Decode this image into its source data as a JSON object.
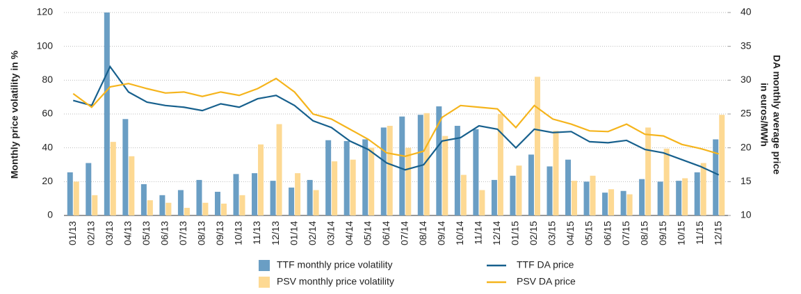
{
  "chart_data": {
    "type": "combo",
    "categories": [
      "01/13",
      "02/13",
      "03/13",
      "04/13",
      "05/13",
      "06/13",
      "07/13",
      "08/13",
      "09/13",
      "10/13",
      "11/13",
      "12/13",
      "01/14",
      "02/14",
      "03/14",
      "04/14",
      "05/14",
      "06/14",
      "07/14",
      "08/14",
      "09/14",
      "10/14",
      "11/14",
      "12/14",
      "01/15",
      "02/15",
      "03/15",
      "04/15",
      "05/15",
      "06/15",
      "07/15",
      "08/15",
      "09/15",
      "10/15",
      "11/15",
      "12/15"
    ],
    "series": [
      {
        "name": "TTF monthly price volatility",
        "type": "bar",
        "color": "#6a9ec4",
        "values": [
          25.5,
          31,
          120,
          57,
          18.5,
          12,
          15,
          21,
          14,
          24.5,
          25,
          20.5,
          16.5,
          21,
          44.5,
          44,
          45,
          52,
          58.5,
          59.5,
          64.5,
          53,
          51,
          21,
          23.5,
          36,
          29,
          33,
          20,
          13.5,
          14.5,
          21.5,
          20,
          20.5,
          25.5,
          45
        ]
      },
      {
        "name": "PSV monthly price volatility",
        "type": "bar",
        "color": "#fdd993",
        "values": [
          20,
          12,
          43.5,
          35,
          9,
          7.5,
          4.5,
          7.5,
          7,
          12,
          42,
          54,
          25,
          15,
          32,
          33,
          40,
          53,
          40,
          60.5,
          47,
          24,
          15,
          60,
          29.5,
          82,
          50,
          20.5,
          23.5,
          15.5,
          12.5,
          52,
          39.5,
          22,
          31,
          59.5
        ]
      },
      {
        "name": "TTF DA price",
        "type": "line",
        "axis": "y2",
        "color": "#17608d",
        "values": [
          27,
          26.25,
          32,
          28.25,
          26.75,
          26.25,
          26,
          25.5,
          26.5,
          26,
          27.25,
          27.75,
          26.25,
          24,
          23,
          21,
          19.75,
          17.75,
          16.75,
          17.5,
          21,
          21.5,
          23.25,
          22.75,
          20,
          22.75,
          22.25,
          22.4,
          20.9,
          20.75,
          21.1,
          19.75,
          19.25,
          18.25,
          17.25,
          16
        ]
      },
      {
        "name": "PSV DA price",
        "type": "line",
        "axis": "y2",
        "color": "#f5b41c",
        "values": [
          28,
          26,
          29,
          29.5,
          28.75,
          28.1,
          28.25,
          27.6,
          28.25,
          27.75,
          28.75,
          30.25,
          28.25,
          25,
          24.25,
          22.75,
          21.25,
          19.25,
          18.75,
          19.5,
          24.5,
          26.25,
          26,
          25.75,
          23,
          26.25,
          24.25,
          23.5,
          22.5,
          22.4,
          23.5,
          22,
          21.75,
          20.5,
          19.9,
          19.1
        ]
      }
    ],
    "ylabel": "Monthly price volatility in %",
    "y2label": [
      "DA monthly average price",
      "in euros/MWh"
    ],
    "ylim": [
      0,
      120
    ],
    "yticks": [
      0,
      20,
      40,
      60,
      80,
      100,
      120
    ],
    "y2lim": [
      10,
      40
    ],
    "y2ticks": [
      10,
      15,
      20,
      25,
      30,
      35,
      40
    ],
    "grid": true
  }
}
